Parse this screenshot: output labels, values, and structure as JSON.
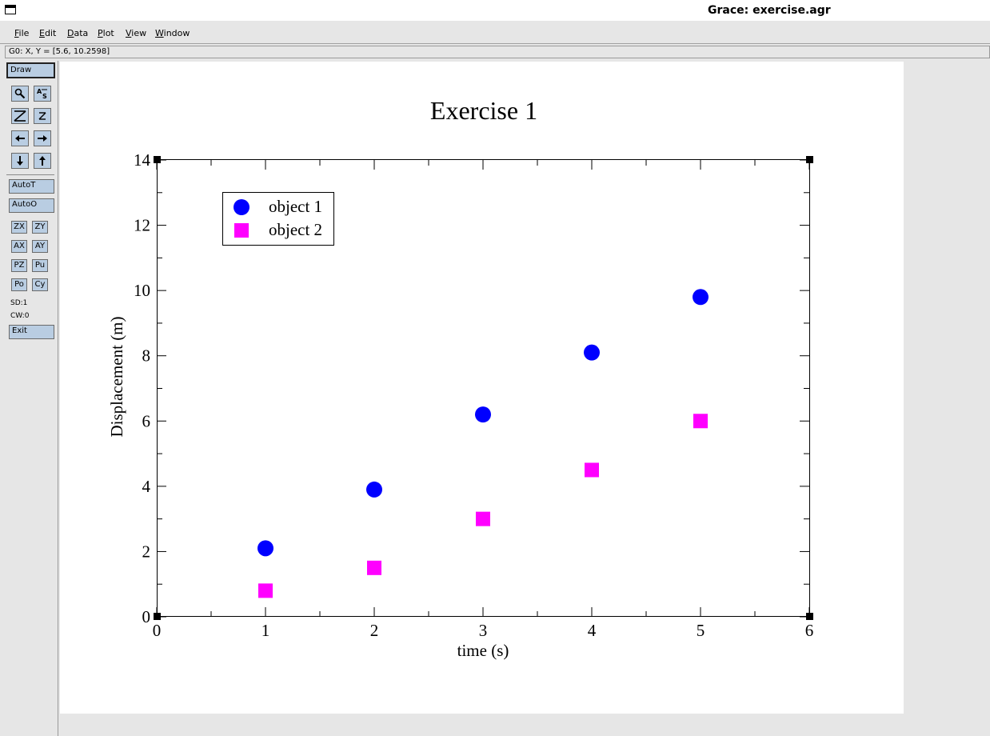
{
  "window": {
    "title": "Grace: exercise.agr"
  },
  "menu": [
    {
      "label": "File",
      "mnemonic": "F",
      "rest": "ile"
    },
    {
      "label": "Edit",
      "mnemonic": "E",
      "rest": "dit"
    },
    {
      "label": "Data",
      "mnemonic": "D",
      "rest": "ata"
    },
    {
      "label": "Plot",
      "mnemonic": "P",
      "rest": "lot"
    },
    {
      "label": "View",
      "mnemonic": "V",
      "rest": "iew"
    },
    {
      "label": "Window",
      "mnemonic": "W",
      "rest": "indow"
    }
  ],
  "locator": {
    "text": "G0: X, Y = [5.6, 10.2598]"
  },
  "toolbar": {
    "draw_label": "Draw",
    "icons": [
      "zoom-icon",
      "autoscale-text-icon",
      "zoom-x-icon",
      "zoom-y-icon",
      "arrow-left-icon",
      "arrow-right-icon",
      "arrow-down-icon",
      "arrow-up-icon"
    ],
    "autot_label": "AutoT",
    "autoo_label": "AutoO",
    "small_buttons": [
      "ZX",
      "ZY",
      "AX",
      "AY",
      "PZ",
      "Pu",
      "Po",
      "Cy"
    ],
    "sd_text": "SD:1",
    "cw_text": "CW:0",
    "exit_label": "Exit"
  },
  "chart_data": {
    "type": "scatter",
    "title": "Exercise 1",
    "xlabel": "time (s)",
    "ylabel": "Displacement (m)",
    "xlim": [
      0,
      6
    ],
    "ylim": [
      0,
      14
    ],
    "xticks": [
      0,
      1,
      2,
      3,
      4,
      5,
      6
    ],
    "yticks": [
      0,
      2,
      4,
      6,
      8,
      10,
      12,
      14
    ],
    "legend_position": "top-left",
    "grid": false,
    "series": [
      {
        "name": "object 1",
        "marker": "circle",
        "color": "#0000ff",
        "x": [
          1,
          2,
          3,
          4,
          5
        ],
        "y": [
          2.1,
          3.9,
          6.2,
          8.1,
          9.8
        ]
      },
      {
        "name": "object 2",
        "marker": "square",
        "color": "#ff00ff",
        "x": [
          1,
          2,
          3,
          4,
          5
        ],
        "y": [
          0.8,
          1.5,
          3.0,
          4.5,
          6.0
        ]
      }
    ]
  }
}
